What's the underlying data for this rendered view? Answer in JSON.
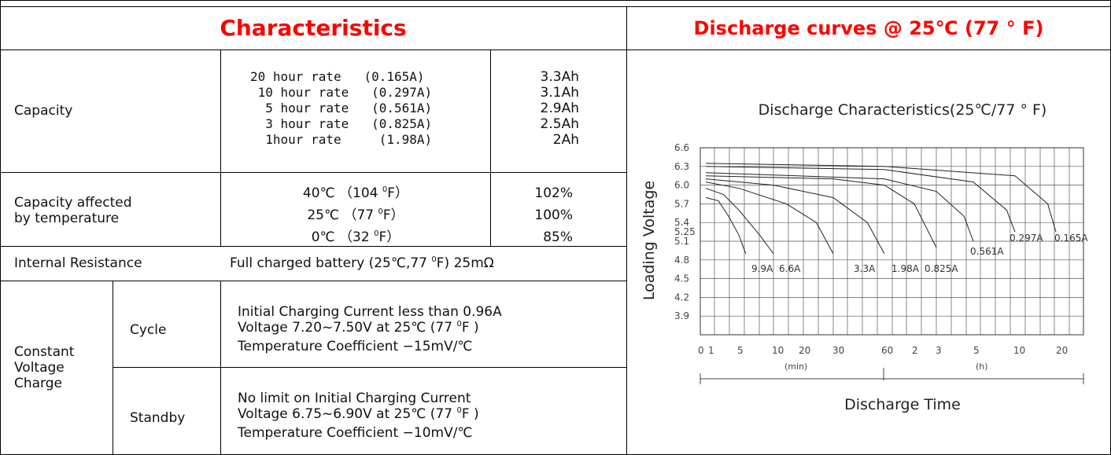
{
  "header": {
    "characteristics": "Characteristics",
    "discharge_title": "Discharge curves @ 25℃ (77 ° F)"
  },
  "capacity": {
    "label": "Capacity",
    "rates": [
      "20 hour rate   (0.165A)",
      " 10 hour rate   (0.297A)",
      "  5 hour rate   (0.561A)",
      "  3 hour rate   (0.825A)",
      "  1hour rate     (1.98A)"
    ],
    "values": [
      "3.3Ah",
      "3.1Ah",
      "2.9Ah",
      "2.5Ah",
      "2Ah"
    ]
  },
  "temperature": {
    "label": [
      "Capacity affected",
      "by temperature"
    ],
    "rows": [
      {
        "cond": "40℃ （104 ",
        "unit": "F）",
        "value": "102%"
      },
      {
        "cond": "25℃ （77 ",
        "unit": "F）",
        "value": "100%"
      },
      {
        "cond": "0℃ （32 ",
        "unit": "F）",
        "value": "85%"
      }
    ],
    "degree_sup": "0"
  },
  "resistance": {
    "label": "Internal Resistance",
    "value_pre": "Full charged battery (25℃,77 ",
    "value_post": "F) 25mΩ"
  },
  "charge": {
    "label": [
      "Constant",
      "Voltage",
      "Charge"
    ],
    "cycle": {
      "label": "Cycle",
      "line1": "Initial Charging Current less than 0.96A",
      "line2_pre": "Voltage 7.20~7.50V at 25℃ (77 ",
      "line2_post": "F )",
      "line3": "Temperature Coefficient −15mV/℃"
    },
    "standby": {
      "label": "Standby",
      "line1": "No limit on Initial Charging Current",
      "line2_pre": "Voltage 6.75~6.90V at 25℃ (77 ",
      "line2_post": "F )",
      "line3": "Temperature Coefficient −10mV/℃"
    }
  },
  "chart_data": {
    "type": "line",
    "title": "Discharge Characteristics(25℃/77 ° F)",
    "xlabel": "Discharge Time",
    "ylabel": "Loading Voltage",
    "y_ticks": [
      "6.6",
      "6.3",
      "6.0",
      "5.7",
      "5.4",
      "5.25",
      "5.1",
      "4.8",
      "4.5",
      "4.2",
      "3.9"
    ],
    "x_ticks": [
      "0",
      "1",
      "5",
      "10",
      "20",
      "30",
      "60",
      "2",
      "3",
      "5",
      "10",
      "20"
    ],
    "x_unit_labels": [
      "(min)",
      "(h)"
    ],
    "ylim": [
      3.6,
      6.6
    ],
    "series": [
      {
        "name": "9.9A",
        "points": [
          [
            0,
            5.8
          ],
          [
            1,
            5.75
          ],
          [
            3,
            5.5
          ],
          [
            5,
            5.2
          ],
          [
            6,
            4.9
          ]
        ]
      },
      {
        "name": "6.6A",
        "points": [
          [
            0,
            5.95
          ],
          [
            2,
            5.85
          ],
          [
            5,
            5.6
          ],
          [
            8,
            5.2
          ],
          [
            10,
            4.9
          ]
        ]
      },
      {
        "name": "3.3A",
        "points": [
          [
            0,
            6.05
          ],
          [
            5,
            5.95
          ],
          [
            15,
            5.7
          ],
          [
            25,
            5.4
          ],
          [
            30,
            4.9
          ]
        ]
      },
      {
        "name": "1.98A",
        "points": [
          [
            0,
            6.1
          ],
          [
            10,
            6.0
          ],
          [
            30,
            5.8
          ],
          [
            50,
            5.4
          ],
          [
            60,
            4.9
          ]
        ]
      },
      {
        "name": "0.825A",
        "points": [
          [
            0,
            6.15
          ],
          [
            30,
            6.1
          ],
          [
            60,
            6.0
          ],
          [
            120,
            5.7
          ],
          [
            180,
            5.0
          ]
        ]
      },
      {
        "name": "0.561A",
        "points": [
          [
            0,
            6.2
          ],
          [
            60,
            6.1
          ],
          [
            180,
            5.9
          ],
          [
            270,
            5.5
          ],
          [
            300,
            5.1
          ]
        ]
      },
      {
        "name": "0.297A",
        "points": [
          [
            0,
            6.3
          ],
          [
            60,
            6.25
          ],
          [
            300,
            6.05
          ],
          [
            540,
            5.6
          ],
          [
            600,
            5.25
          ]
        ]
      },
      {
        "name": "0.165A",
        "points": [
          [
            0,
            6.35
          ],
          [
            60,
            6.3
          ],
          [
            600,
            6.15
          ],
          [
            1080,
            5.7
          ],
          [
            1200,
            5.25
          ]
        ]
      }
    ]
  }
}
